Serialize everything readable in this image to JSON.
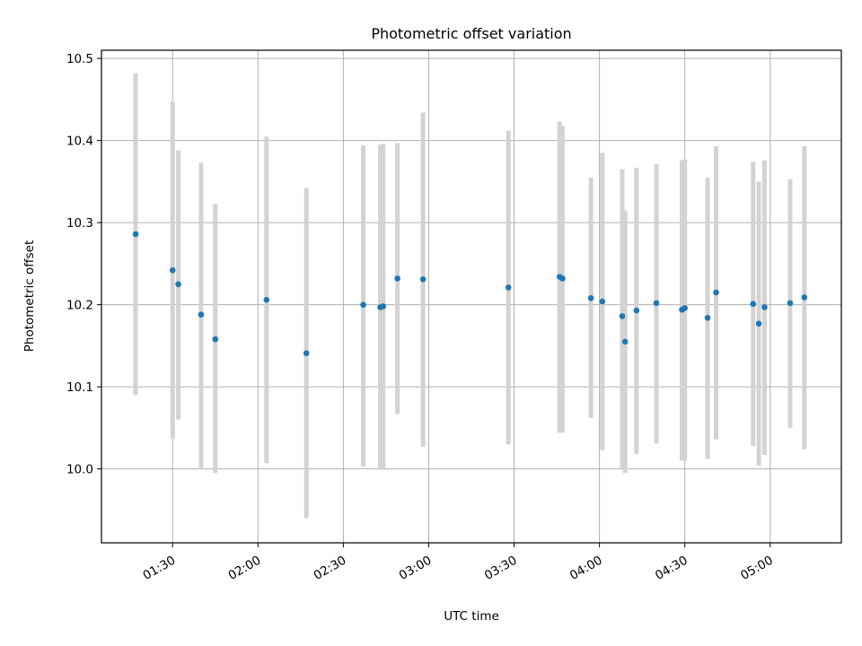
{
  "chart_data": {
    "type": "scatter",
    "title": "Photometric offset variation",
    "xlabel": "UTC time",
    "ylabel": "Photometric offset",
    "xlim": [
      "01:05",
      "05:25"
    ],
    "ylim": [
      9.91,
      10.51
    ],
    "x_ticks": [
      "01:30",
      "02:00",
      "02:30",
      "03:00",
      "03:30",
      "04:00",
      "04:30",
      "05:00"
    ],
    "y_ticks": [
      "10.0",
      "10.1",
      "10.2",
      "10.3",
      "10.4",
      "10.5"
    ],
    "grid": true,
    "colors": {
      "point": "#1f77b4",
      "errorbar": "#d3d3d3",
      "grid": "#b0b0b0"
    },
    "points": [
      {
        "x": "01:17",
        "y": 10.286,
        "ylow": 10.09,
        "yhigh": 10.482
      },
      {
        "x": "01:30",
        "y": 10.242,
        "ylow": 10.037,
        "yhigh": 10.447
      },
      {
        "x": "01:32",
        "y": 10.225,
        "ylow": 10.06,
        "yhigh": 10.388
      },
      {
        "x": "01:40",
        "y": 10.188,
        "ylow": 10.0,
        "yhigh": 10.373
      },
      {
        "x": "01:45",
        "y": 10.158,
        "ylow": 9.995,
        "yhigh": 10.323
      },
      {
        "x": "02:03",
        "y": 10.206,
        "ylow": 10.007,
        "yhigh": 10.405
      },
      {
        "x": "02:17",
        "y": 10.141,
        "ylow": 9.94,
        "yhigh": 10.342
      },
      {
        "x": "02:37",
        "y": 10.2,
        "ylow": 10.003,
        "yhigh": 10.394
      },
      {
        "x": "02:43",
        "y": 10.197,
        "ylow": 9.999,
        "yhigh": 10.395
      },
      {
        "x": "02:44",
        "y": 10.198,
        "ylow": 9.999,
        "yhigh": 10.396
      },
      {
        "x": "02:49",
        "y": 10.232,
        "ylow": 10.067,
        "yhigh": 10.397
      },
      {
        "x": "02:58",
        "y": 10.231,
        "ylow": 10.027,
        "yhigh": 10.434
      },
      {
        "x": "03:28",
        "y": 10.221,
        "ylow": 10.03,
        "yhigh": 10.412
      },
      {
        "x": "03:46",
        "y": 10.234,
        "ylow": 10.044,
        "yhigh": 10.423
      },
      {
        "x": "03:47",
        "y": 10.232,
        "ylow": 10.044,
        "yhigh": 10.418
      },
      {
        "x": "03:57",
        "y": 10.208,
        "ylow": 10.062,
        "yhigh": 10.355
      },
      {
        "x": "04:01",
        "y": 10.204,
        "ylow": 10.023,
        "yhigh": 10.385
      },
      {
        "x": "04:08",
        "y": 10.186,
        "ylow": 10.0,
        "yhigh": 10.365
      },
      {
        "x": "04:09",
        "y": 10.155,
        "ylow": 9.995,
        "yhigh": 10.315
      },
      {
        "x": "04:13",
        "y": 10.193,
        "ylow": 10.018,
        "yhigh": 10.367
      },
      {
        "x": "04:20",
        "y": 10.202,
        "ylow": 10.031,
        "yhigh": 10.371
      },
      {
        "x": "04:29",
        "y": 10.194,
        "ylow": 10.01,
        "yhigh": 10.376
      },
      {
        "x": "04:30",
        "y": 10.196,
        "ylow": 10.01,
        "yhigh": 10.377
      },
      {
        "x": "04:38",
        "y": 10.184,
        "ylow": 10.012,
        "yhigh": 10.355
      },
      {
        "x": "04:41",
        "y": 10.215,
        "ylow": 10.036,
        "yhigh": 10.393
      },
      {
        "x": "04:54",
        "y": 10.201,
        "ylow": 10.028,
        "yhigh": 10.374
      },
      {
        "x": "04:56",
        "y": 10.177,
        "ylow": 10.004,
        "yhigh": 10.35
      },
      {
        "x": "04:58",
        "y": 10.197,
        "ylow": 10.017,
        "yhigh": 10.376
      },
      {
        "x": "05:07",
        "y": 10.202,
        "ylow": 10.05,
        "yhigh": 10.353
      },
      {
        "x": "05:12",
        "y": 10.209,
        "ylow": 10.024,
        "yhigh": 10.393
      }
    ]
  }
}
